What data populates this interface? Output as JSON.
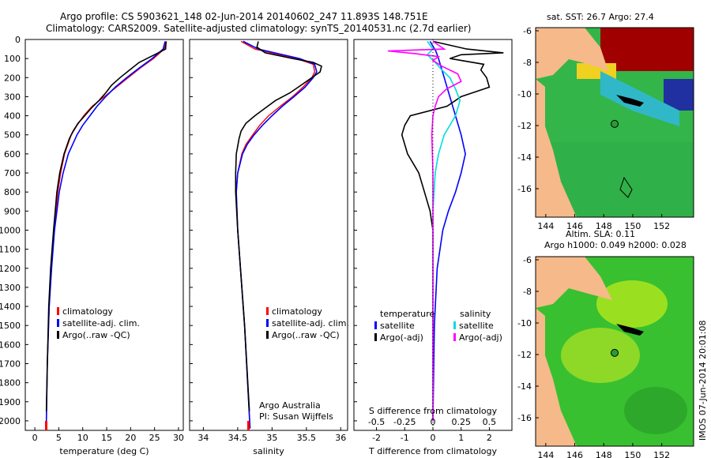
{
  "header": {
    "line1": "Argo profile: CS 5903621_148 02-Jun-2014 20140602_247 11.893S 148.751E",
    "line2": "Climatology: CARS2009. Satellite-adjusted climatology: synTS_20140531.nc (2.7d earlier)"
  },
  "colors": {
    "climatology": "#ff0000",
    "satellite": "#0000ff",
    "argo": "#000000",
    "sal_satellite": "#00dddd",
    "sal_argo": "#ff00ff",
    "land": "#f5b98a"
  },
  "chart_data": [
    {
      "type": "line",
      "name": "temperature",
      "xlabel": "temperature (deg C)",
      "ylabel": "",
      "xlim": [
        -2,
        31
      ],
      "ylim": [
        2050,
        0
      ],
      "xticks": [
        "0",
        "5",
        "10",
        "15",
        "20",
        "25",
        "30"
      ],
      "xtick_values": [
        0,
        5,
        10,
        15,
        20,
        25,
        30
      ],
      "yticks": [
        "0",
        "100",
        "200",
        "300",
        "400",
        "500",
        "600",
        "700",
        "800",
        "900",
        "1000",
        "1100",
        "1200",
        "1300",
        "1400",
        "1500",
        "1600",
        "1700",
        "1800",
        "1900",
        "2000"
      ],
      "ytick_values": [
        0,
        100,
        200,
        300,
        400,
        500,
        600,
        700,
        800,
        900,
        1000,
        1100,
        1200,
        1300,
        1400,
        1500,
        1600,
        1700,
        1800,
        1900,
        2000
      ],
      "legend": [
        "climatology",
        "satellite-adj. clim.",
        "Argo(..raw -QC)"
      ],
      "series": [
        {
          "name": "climatology",
          "depth": [
            10,
            50,
            100,
            150,
            200,
            250,
            300,
            350,
            400,
            450,
            500,
            600,
            700,
            800,
            1000,
            1200,
            1400,
            1700,
            2000,
            2040
          ],
          "values": [
            27.5,
            27.0,
            24.8,
            22.0,
            19.5,
            17.0,
            14.5,
            12.0,
            10.2,
            8.8,
            7.6,
            6.2,
            5.4,
            4.8,
            4.0,
            3.4,
            3.0,
            2.6,
            2.4,
            2.4
          ]
        },
        {
          "name": "satellite-adj. clim.",
          "depth": [
            10,
            50,
            100,
            150,
            200,
            250,
            300,
            350,
            400,
            450,
            500,
            600,
            700,
            800,
            1000,
            1200,
            1400,
            1700,
            2000,
            2040
          ],
          "values": [
            27.2,
            26.8,
            24.5,
            21.8,
            19.2,
            16.8,
            14.8,
            13.0,
            11.5,
            10.0,
            8.8,
            7.0,
            5.9,
            5.1,
            4.1,
            3.5,
            3.0,
            2.6,
            2.4,
            2.4
          ]
        },
        {
          "name": "Argo(..raw -QC)",
          "depth": [
            10,
            50,
            80,
            120,
            160,
            200,
            240,
            280,
            320,
            360,
            400,
            440,
            480,
            520,
            600,
            700,
            800,
            1000,
            1200,
            1400,
            1700,
            1950
          ],
          "values": [
            27.4,
            27.3,
            25.0,
            21.8,
            19.8,
            17.8,
            16.0,
            14.8,
            13.4,
            11.8,
            10.4,
            9.0,
            8.0,
            7.2,
            6.1,
            5.2,
            4.6,
            3.9,
            3.3,
            2.9,
            2.6,
            2.4
          ]
        }
      ]
    },
    {
      "type": "line",
      "name": "salinity",
      "xlabel": "salinity",
      "xlim": [
        33.8,
        36.1
      ],
      "ylim": [
        2050,
        0
      ],
      "xticks": [
        "34",
        "34.5",
        "35",
        "35.5",
        "36"
      ],
      "xtick_values": [
        34,
        34.5,
        35,
        35.5,
        36
      ],
      "legend": [
        "climatology",
        "satellite-adj. clim.",
        "Argo(..raw -QC)"
      ],
      "annotation": [
        "Argo Australia",
        "PI: Susan Wijffels"
      ],
      "series": [
        {
          "name": "climatology",
          "depth": [
            10,
            50,
            100,
            130,
            170,
            200,
            250,
            300,
            350,
            400,
            450,
            500,
            550,
            600,
            700,
            800,
            1000,
            1500,
            2040
          ],
          "values": [
            34.55,
            34.75,
            35.35,
            35.6,
            35.62,
            35.58,
            35.45,
            35.3,
            35.12,
            34.95,
            34.82,
            34.72,
            34.62,
            34.56,
            34.5,
            34.48,
            34.5,
            34.6,
            34.68
          ]
        },
        {
          "name": "satellite-adj. clim.",
          "depth": [
            10,
            50,
            100,
            130,
            170,
            200,
            250,
            300,
            350,
            400,
            450,
            500,
            550,
            600,
            700,
            800,
            1000,
            1500,
            2040
          ],
          "values": [
            34.58,
            34.8,
            35.4,
            35.62,
            35.65,
            35.6,
            35.48,
            35.32,
            35.15,
            35.0,
            34.86,
            34.74,
            34.64,
            34.57,
            34.5,
            34.48,
            34.5,
            34.6,
            34.68
          ]
        },
        {
          "name": "Argo(..raw -QC)",
          "depth": [
            10,
            40,
            70,
            100,
            120,
            140,
            170,
            200,
            240,
            280,
            320,
            360,
            400,
            440,
            480,
            520,
            560,
            600,
            700,
            800,
            1000,
            1500,
            1950
          ],
          "values": [
            34.8,
            34.78,
            34.9,
            35.3,
            35.6,
            35.72,
            35.7,
            35.58,
            35.42,
            35.26,
            35.05,
            34.9,
            34.75,
            34.62,
            34.55,
            34.52,
            34.5,
            34.48,
            34.47,
            34.47,
            34.5,
            34.6,
            34.67
          ]
        }
      ]
    },
    {
      "type": "line",
      "name": "differences",
      "xlabel": "T difference from climatology",
      "xlabel2": "S difference from climatology",
      "xlim": [
        -2.8,
        2.8
      ],
      "ylim": [
        2050,
        0
      ],
      "xticks": [
        "-2",
        "-1",
        "0",
        "1",
        "2"
      ],
      "xtick_values": [
        -2,
        -1,
        0,
        1,
        2
      ],
      "xticks_s": [
        "-0.5",
        "-0.25",
        "0",
        "0.25",
        "0.5"
      ],
      "xtick_values_s": [
        -0.5,
        -0.25,
        0,
        0.25,
        0.5
      ],
      "legend_headers": [
        "temperature",
        "salinity"
      ],
      "legend": [
        "satellite",
        "Argo(-adj)",
        "satellite",
        "Argo(-adj)"
      ],
      "series": [
        {
          "name": "T satellite",
          "depth": [
            10,
            60,
            100,
            150,
            200,
            300,
            400,
            500,
            600,
            700,
            800,
            900,
            1000,
            1200,
            1500,
            2000
          ],
          "values": [
            -0.1,
            0.1,
            0.2,
            0.3,
            0.4,
            0.6,
            0.8,
            1.0,
            1.15,
            1.0,
            0.8,
            0.55,
            0.35,
            0.15,
            0.05,
            0.0
          ]
        },
        {
          "name": "T Argo(-adj)",
          "depth": [
            10,
            50,
            70,
            80,
            100,
            130,
            160,
            200,
            250,
            300,
            350,
            400,
            450,
            500,
            600,
            700,
            800,
            900,
            1000,
            1200,
            1500,
            2000
          ],
          "values": [
            0.0,
            1.2,
            2.5,
            1.0,
            0.6,
            1.8,
            1.7,
            1.9,
            2.0,
            1.0,
            0.5,
            -0.8,
            -1.0,
            -1.1,
            -0.9,
            -0.5,
            -0.3,
            -0.1,
            0.0,
            0.0,
            0.0,
            0.0
          ]
        },
        {
          "name": "S satellite",
          "depth": [
            10,
            50,
            80,
            120,
            160,
            200,
            260,
            320,
            400,
            500,
            600,
            700,
            900,
            1200,
            1600,
            2000
          ],
          "values": [
            -0.05,
            0.0,
            -0.05,
            0.02,
            0.08,
            0.15,
            0.2,
            0.24,
            0.2,
            0.1,
            0.05,
            0.02,
            0.0,
            0.0,
            0.0,
            0.0
          ]
        },
        {
          "name": "S Argo(-adj)",
          "depth": [
            10,
            50,
            60,
            75,
            90,
            110,
            140,
            180,
            220,
            260,
            300,
            350,
            400,
            500,
            700,
            1000,
            1500,
            2000
          ],
          "values": [
            0.0,
            0.1,
            -0.4,
            -0.15,
            0.05,
            0.0,
            0.08,
            0.22,
            0.25,
            0.12,
            0.05,
            0.02,
            0.0,
            -0.01,
            0.0,
            0.0,
            0.0,
            0.0
          ]
        }
      ]
    },
    {
      "type": "heatmap",
      "name": "sst_map",
      "title": "sat. SST: 26.7 Argo: 27.4",
      "xlim": [
        143.3,
        154.2
      ],
      "ylim": [
        -17.8,
        -5.8
      ],
      "xticks": [
        "144",
        "146",
        "148",
        "150",
        "152"
      ],
      "xtick_values": [
        144,
        146,
        148,
        150,
        152
      ],
      "yticks": [
        "-6",
        "-8",
        "-10",
        "-12",
        "-14",
        "-16"
      ],
      "ytick_values": [
        -6,
        -8,
        -10,
        -12,
        -14,
        -16
      ],
      "marker": {
        "lon": 148.751,
        "lat": -11.893
      }
    },
    {
      "type": "heatmap",
      "name": "sla_map",
      "title": "Altim. SLA: 0.11",
      "subtitle": "Argo h1000: 0.049 h2000: 0.028",
      "xlim": [
        143.3,
        154.2
      ],
      "ylim": [
        -17.8,
        -5.8
      ],
      "xticks": [
        "144",
        "146",
        "148",
        "150",
        "152"
      ],
      "xtick_values": [
        144,
        146,
        148,
        150,
        152
      ],
      "yticks": [
        "-6",
        "-8",
        "-10",
        "-12",
        "-14",
        "-16"
      ],
      "ytick_values": [
        -6,
        -8,
        -10,
        -12,
        -14,
        -16
      ],
      "marker": {
        "lon": 148.751,
        "lat": -11.893
      }
    }
  ],
  "footer": {
    "credit": "IMOS 07-Jun-2014 20:01:08"
  }
}
